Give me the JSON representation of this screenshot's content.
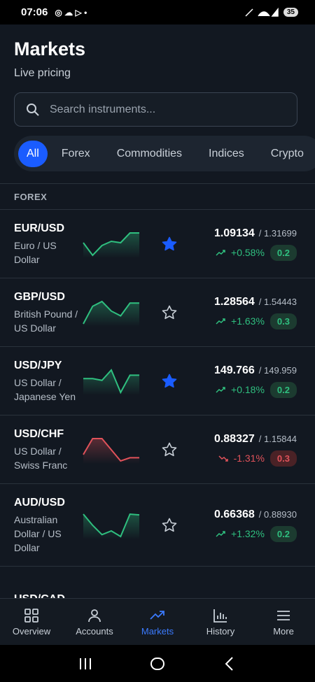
{
  "status_bar": {
    "time": "07:06",
    "battery": "35"
  },
  "header": {
    "title": "Markets",
    "subtitle": "Live pricing"
  },
  "search": {
    "placeholder": "Search instruments..."
  },
  "tabs": {
    "items": [
      "All",
      "Forex",
      "Commodities",
      "Indices",
      "Crypto"
    ],
    "active": 0
  },
  "section": "FOREX",
  "instruments": [
    {
      "symbol": "EUR/USD",
      "name": "Euro / US Dollar",
      "price": "1.09134",
      "reference": "/ 1.31699",
      "change": "+0.58%",
      "spread": "0.2",
      "starred": true,
      "sparkline": [
        55,
        10,
        45,
        60,
        55,
        90,
        90
      ]
    },
    {
      "symbol": "GBP/USD",
      "name": "British Pound / US Dollar",
      "price": "1.28564",
      "reference": "/ 1.54443",
      "change": "+1.63%",
      "spread": "0.3",
      "starred": false,
      "sparkline": [
        20,
        75,
        90,
        60,
        45,
        85,
        85
      ]
    },
    {
      "symbol": "USD/JPY",
      "name": "US Dollar / Japanese Yen",
      "price": "149.766",
      "reference": "/ 149.959",
      "change": "+0.18%",
      "spread": "0.2",
      "starred": true,
      "sparkline": [
        60,
        60,
        55,
        85,
        20,
        70,
        70
      ]
    },
    {
      "symbol": "USD/CHF",
      "name": "US Dollar / Swiss Franc",
      "price": "0.88327",
      "reference": "/ 1.15844",
      "change": "-1.31%",
      "spread": "0.3",
      "starred": false,
      "sparkline": [
        30,
        80,
        80,
        45,
        10,
        20,
        20
      ]
    },
    {
      "symbol": "AUD/USD",
      "name": "Australian Dollar / US Dollar",
      "price": "0.66368",
      "reference": "/ 0.88930",
      "change": "+1.32%",
      "spread": "0.2",
      "starred": false,
      "sparkline": [
        80,
        50,
        25,
        35,
        20,
        80,
        78
      ]
    },
    {
      "symbol": "USD/CAD",
      "name": "",
      "price": "",
      "reference": "",
      "change": "",
      "spread": "",
      "starred": false,
      "sparkline": []
    }
  ],
  "nav": {
    "items": [
      "Overview",
      "Accounts",
      "Markets",
      "History",
      "More"
    ],
    "active": 2
  }
}
